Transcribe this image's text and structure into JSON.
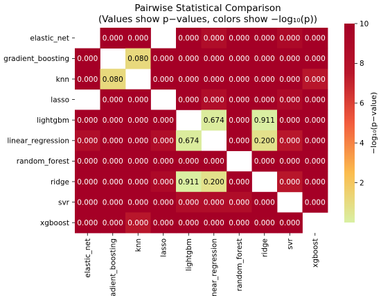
{
  "chart_data": {
    "type": "heatmap",
    "title": "Pairwise Statistical Comparison",
    "subtitle": "(Values show p−values, colors show −log₁₀(p))",
    "row_labels": [
      "elastic_net",
      "gradient_boosting",
      "knn",
      "lasso",
      "lightgbm",
      "linear_regression",
      "random_forest",
      "ridge",
      "svr",
      "xgboost"
    ],
    "col_labels": [
      "elastic_net",
      "gradient_boosting",
      "knn",
      "lasso",
      "lightgbm",
      "linear_regression",
      "random_forest",
      "ridge",
      "svr",
      "xgboost"
    ],
    "cell_text": [
      [
        "",
        "0.000",
        "0.000",
        "",
        "0.000",
        "0.000",
        "0.000",
        "0.000",
        "0.000",
        "0.000"
      ],
      [
        "0.000",
        "",
        "0.080",
        "0.000",
        "0.000",
        "0.000",
        "0.000",
        "0.000",
        "0.000",
        "0.000"
      ],
      [
        "0.000",
        "0.080",
        "",
        "0.000",
        "0.000",
        "0.000",
        "0.000",
        "0.000",
        "0.000",
        "0.000"
      ],
      [
        "",
        "0.000",
        "0.000",
        "",
        "0.000",
        "0.000",
        "0.000",
        "0.000",
        "0.000",
        "0.000"
      ],
      [
        "0.000",
        "0.000",
        "0.000",
        "0.000",
        "",
        "0.674",
        "0.000",
        "0.911",
        "0.000",
        "0.000"
      ],
      [
        "0.000",
        "0.000",
        "0.000",
        "0.000",
        "0.674",
        "",
        "0.000",
        "0.200",
        "0.000",
        "0.000"
      ],
      [
        "0.000",
        "0.000",
        "0.000",
        "0.000",
        "0.000",
        "0.000",
        "",
        "0.000",
        "0.000",
        "0.000"
      ],
      [
        "0.000",
        "0.000",
        "0.000",
        "0.000",
        "0.911",
        "0.200",
        "0.000",
        "",
        "0.000",
        "0.000"
      ],
      [
        "0.000",
        "0.000",
        "0.000",
        "0.000",
        "0.000",
        "0.000",
        "0.000",
        "0.000",
        "",
        "0.000"
      ],
      [
        "0.000",
        "0.000",
        "0.000",
        "0.000",
        "0.000",
        "0.000",
        "0.000",
        "0.000",
        "0.000",
        ""
      ]
    ],
    "color_values": [
      [
        null,
        10,
        10,
        null,
        10,
        8.5,
        10,
        10,
        9,
        10
      ],
      [
        10,
        null,
        1.1,
        10,
        10,
        10,
        10,
        10,
        10,
        10
      ],
      [
        10,
        1.1,
        null,
        10,
        10,
        10,
        10,
        10,
        10,
        7.5
      ],
      [
        null,
        10,
        10,
        null,
        10,
        8.5,
        10,
        10,
        9,
        10
      ],
      [
        10,
        10,
        10,
        10,
        null,
        0.17,
        10,
        0.04,
        10,
        10
      ],
      [
        8.5,
        10,
        10,
        8.5,
        0.17,
        null,
        10,
        0.7,
        7.5,
        10
      ],
      [
        10,
        10,
        10,
        10,
        10,
        10,
        null,
        10,
        10,
        10
      ],
      [
        10,
        10,
        10,
        9,
        0.04,
        0.7,
        10,
        null,
        7.5,
        10
      ],
      [
        10,
        10,
        10,
        10,
        8.5,
        8.5,
        8.5,
        10,
        null,
        10
      ],
      [
        10,
        10,
        7.5,
        10,
        10,
        10,
        10,
        10,
        10,
        null
      ]
    ],
    "colorbar": {
      "label": "−log₁₀(p−value)",
      "ticks": [
        2,
        4,
        6,
        8,
        10
      ],
      "min": 0,
      "max": 10,
      "colormap": [
        "#d9f0a3",
        "#fbbc4d",
        "#f25c3d",
        "#b8162b",
        "#a50026"
      ]
    }
  }
}
